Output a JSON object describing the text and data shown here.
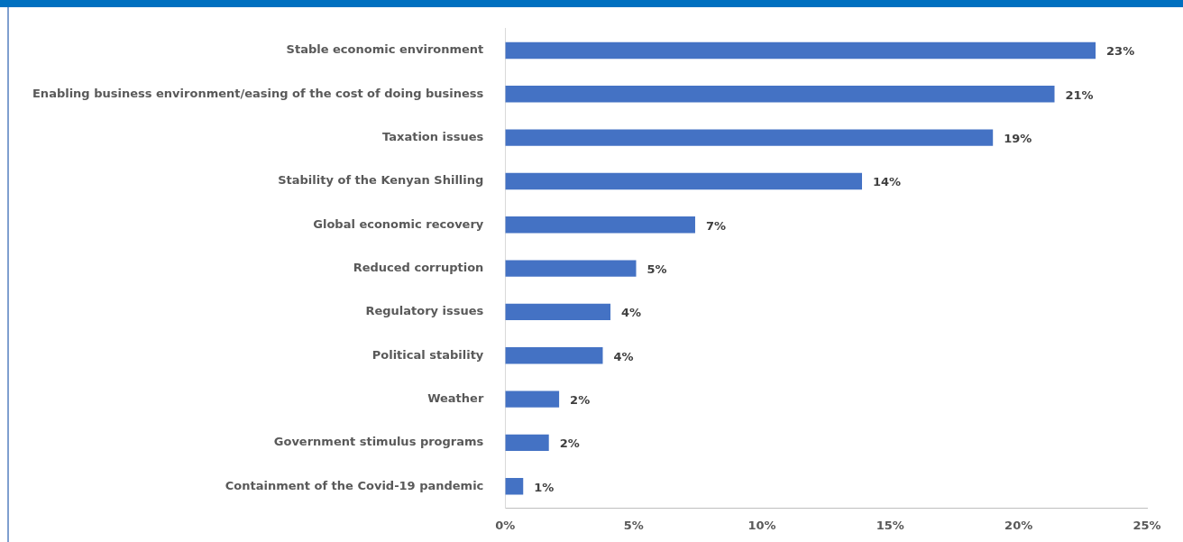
{
  "chart_data": {
    "type": "bar",
    "orientation": "horizontal",
    "categories": [
      "Stable economic environment",
      "Enabling business environment/easing of the cost of doing business",
      "Taxation issues",
      "Stability of the Kenyan Shilling",
      "Global economic recovery",
      "Reduced corruption",
      "Regulatory issues",
      "Political stability",
      "Weather",
      "Government stimulus programs",
      "Containment of the Covid-19 pandemic"
    ],
    "values": [
      23.0,
      21.4,
      19.0,
      13.9,
      7.4,
      5.1,
      4.1,
      3.8,
      2.1,
      1.7,
      0.7
    ],
    "value_labels": [
      "23%",
      "21%",
      "19%",
      "14%",
      "7%",
      "5%",
      "4%",
      "4%",
      "2%",
      "2%",
      "1%"
    ],
    "color": "#4472c4",
    "xlim": [
      0,
      25
    ],
    "xticks": [
      {
        "value": 0,
        "label": "0%"
      },
      {
        "value": 5,
        "label": "5%"
      },
      {
        "value": 10,
        "label": "10%"
      },
      {
        "value": 15,
        "label": "15%"
      },
      {
        "value": 20,
        "label": "20%"
      },
      {
        "value": 25,
        "label": "25%"
      }
    ],
    "grid": false,
    "legend": false
  }
}
